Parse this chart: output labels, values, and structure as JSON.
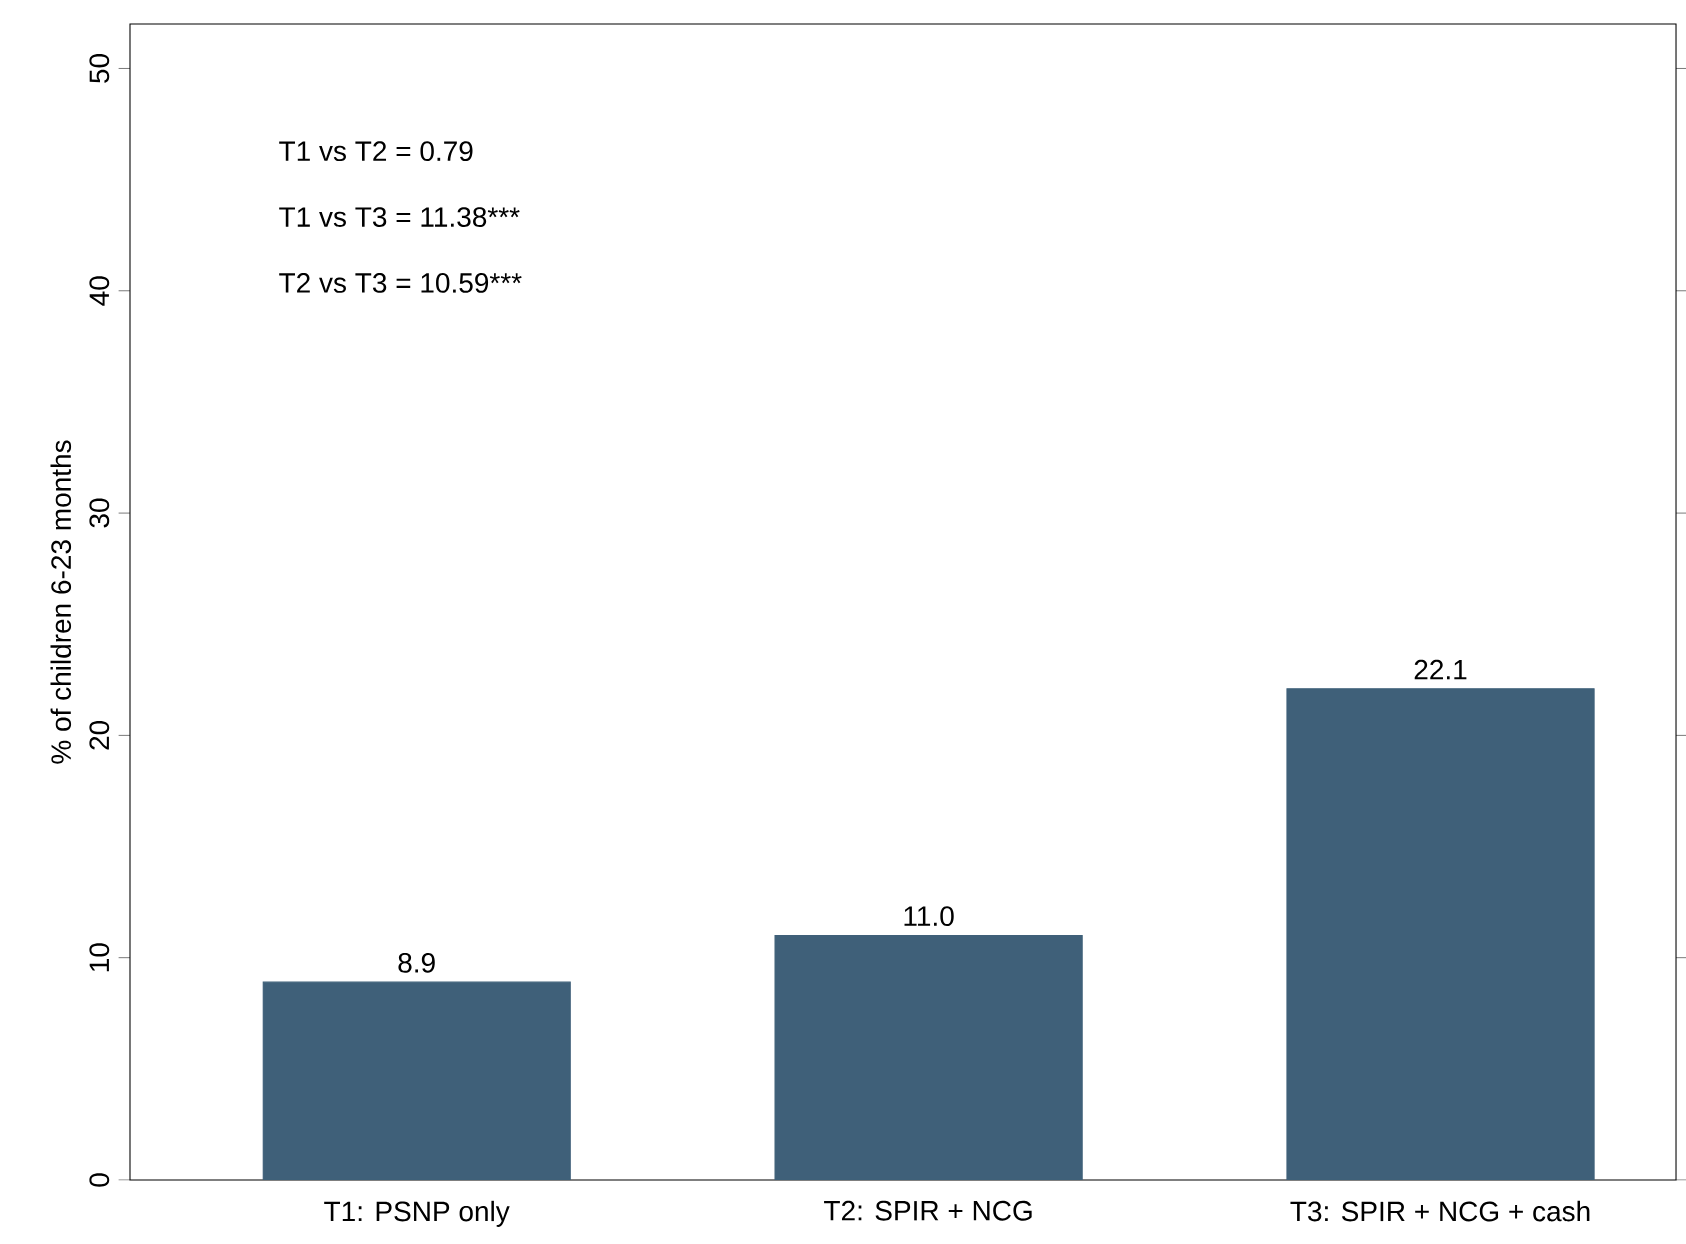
{
  "chart_data": {
    "type": "bar",
    "ylabel": "% of children 6-23 months",
    "categories": [
      "T1: PSNP only",
      "T2: SPIR + NCG",
      "T3: SPIR + NCG + cash"
    ],
    "values": [
      8.9,
      11.0,
      22.1
    ],
    "color": "#3f6079",
    "ylim": [
      0,
      52
    ],
    "yticks": [
      0,
      10,
      20,
      30,
      40,
      50
    ],
    "value_labels": [
      "8.9",
      "11.0",
      "22.1"
    ],
    "grid": false,
    "annotations": [
      "T1 vs T2 = 0.79",
      "T1 vs T3 = 11.38***",
      "T2 vs T3 = 10.59***"
    ]
  }
}
